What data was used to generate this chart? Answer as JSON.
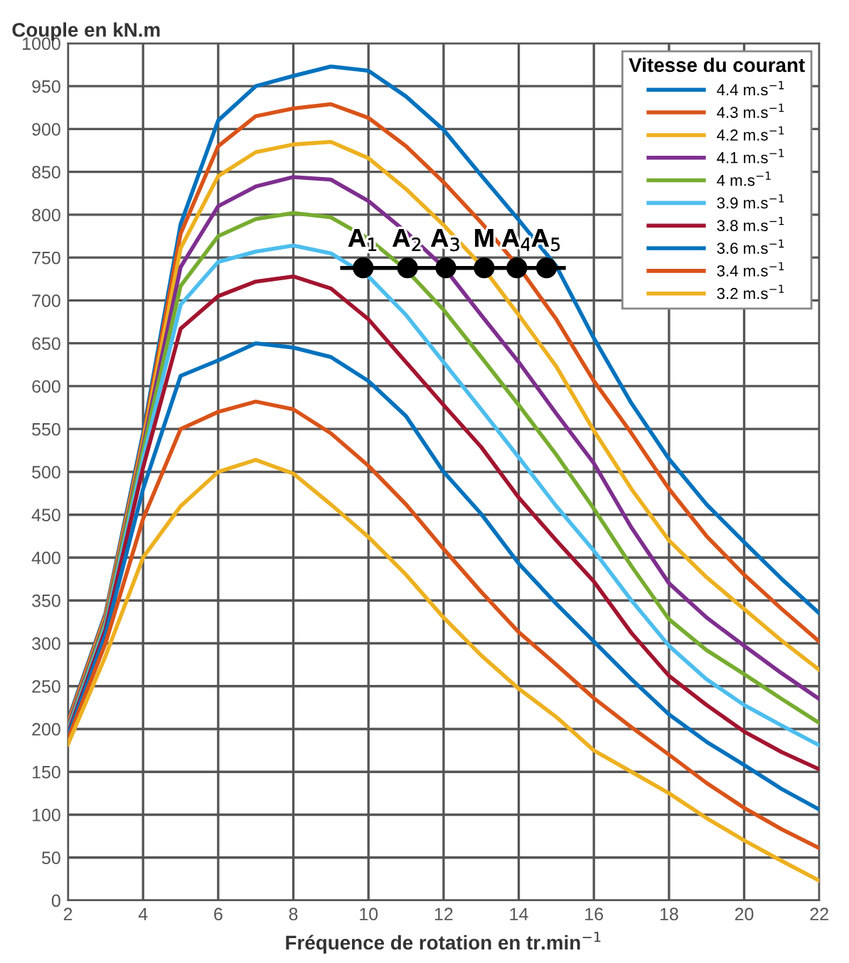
{
  "chart_data": {
    "type": "line",
    "xlabel": "Fréquence de rotation en tr.min$^{−1}$",
    "ylabel": "Couple en kN.m",
    "legend_title": "Vitesse du courant",
    "xlim": [
      2,
      22
    ],
    "xticks": [
      2,
      4,
      6,
      8,
      10,
      12,
      14,
      16,
      18,
      20,
      22
    ],
    "ylim": [
      0,
      1000
    ],
    "yticks": [
      0,
      50,
      100,
      150,
      200,
      250,
      300,
      350,
      400,
      450,
      500,
      550,
      600,
      650,
      700,
      750,
      800,
      850,
      900,
      950,
      1000
    ],
    "grid": true,
    "legend": "top right",
    "marker": "none",
    "line_style": "solid",
    "x": [
      2,
      3,
      4,
      5,
      6,
      7,
      8,
      9,
      10,
      11,
      12,
      13,
      14,
      15,
      16,
      17,
      18,
      19,
      20,
      21,
      22
    ],
    "series": [
      {
        "name": "4.4 m.s$^{−1}$",
        "color": "#0072bd",
        "values": [
          210,
          335,
          545,
          789,
          910,
          950,
          962,
          973,
          968,
          938,
          899,
          846,
          794,
          740,
          656,
          580,
          515,
          462,
          418,
          375,
          335
        ]
      },
      {
        "name": "4.3 m.s$^{−1}$",
        "color": "#d95319",
        "values": [
          208,
          333,
          540,
          778,
          880,
          915,
          924,
          929,
          913,
          880,
          838,
          791,
          739,
          678,
          606,
          545,
          480,
          425,
          380,
          340,
          302
        ]
      },
      {
        "name": "4.2 m.s$^{−1}$",
        "color": "#edb120",
        "values": [
          205,
          330,
          535,
          761,
          845,
          873,
          882,
          885,
          866,
          830,
          788,
          741,
          683,
          623,
          548,
          480,
          420,
          377,
          340,
          303,
          269
        ]
      },
      {
        "name": "4.1 m.s$^{−1}$",
        "color": "#7e2f8e",
        "values": [
          203,
          327,
          530,
          739,
          810,
          833,
          844,
          841,
          816,
          780,
          739,
          683,
          628,
          568,
          510,
          435,
          370,
          330,
          297,
          265,
          235
        ]
      },
      {
        "name": "4 m.s$^{−1}$",
        "color": "#77ac30",
        "values": [
          200,
          324,
          525,
          717,
          775,
          795,
          802,
          797,
          772,
          736,
          689,
          634,
          578,
          520,
          457,
          390,
          328,
          292,
          264,
          235,
          207
        ]
      },
      {
        "name": "3.9 m.s$^{−1}$",
        "color": "#4dbeee",
        "values": [
          198,
          320,
          515,
          695,
          745,
          757,
          764,
          755,
          728,
          683,
          628,
          573,
          517,
          460,
          408,
          350,
          297,
          258,
          228,
          204,
          181
        ]
      },
      {
        "name": "3.8 m.s$^{−1}$",
        "color": "#a2142f",
        "values": [
          195,
          316,
          505,
          667,
          705,
          722,
          728,
          714,
          678,
          628,
          578,
          529,
          470,
          420,
          372,
          312,
          262,
          228,
          197,
          173,
          153
        ]
      },
      {
        "name": "3.6 m.s$^{−1}$",
        "color": "#0072bd",
        "values": [
          192,
          310,
          480,
          612,
          630,
          650,
          645,
          634,
          606,
          565,
          500,
          451,
          393,
          346,
          302,
          258,
          217,
          185,
          158,
          130,
          106
        ]
      },
      {
        "name": "3.4 m.s$^{−1}$",
        "color": "#d95319",
        "values": [
          188,
          300,
          445,
          550,
          570,
          582,
          573,
          545,
          507,
          462,
          410,
          360,
          313,
          275,
          236,
          202,
          170,
          137,
          108,
          83,
          61
        ]
      },
      {
        "name": "3.2 m.s$^{−1}$",
        "color": "#edb120",
        "values": [
          182,
          285,
          400,
          460,
          500,
          514,
          498,
          462,
          424,
          380,
          330,
          286,
          247,
          214,
          175,
          150,
          125,
          96,
          70,
          46,
          23
        ]
      },
      {
        "type": "line",
        "color": "#000000",
        "x": [
          9.3,
          15.2
        ],
        "values": [
          738,
          738
        ]
      },
      {
        "type": "scatter",
        "marker": "circle",
        "color": "#000000",
        "x": [
          9.86,
          11.04,
          12.06,
          13.08,
          13.95,
          14.74
        ],
        "values": [
          738,
          738,
          738,
          738,
          738,
          738
        ]
      }
    ],
    "annotations": [
      {
        "text": "A$_{1}$",
        "x": 9.86,
        "y": 738
      },
      {
        "text": "A$_{2}$",
        "x": 11.04,
        "y": 738
      },
      {
        "text": "A$_{3}$",
        "x": 12.06,
        "y": 738
      },
      {
        "text": "M",
        "x": 13.08,
        "y": 738
      },
      {
        "text": "A$_{4}$",
        "x": 13.95,
        "y": 738
      },
      {
        "text": "A$_{5}$",
        "x": 14.74,
        "y": 738
      }
    ]
  }
}
